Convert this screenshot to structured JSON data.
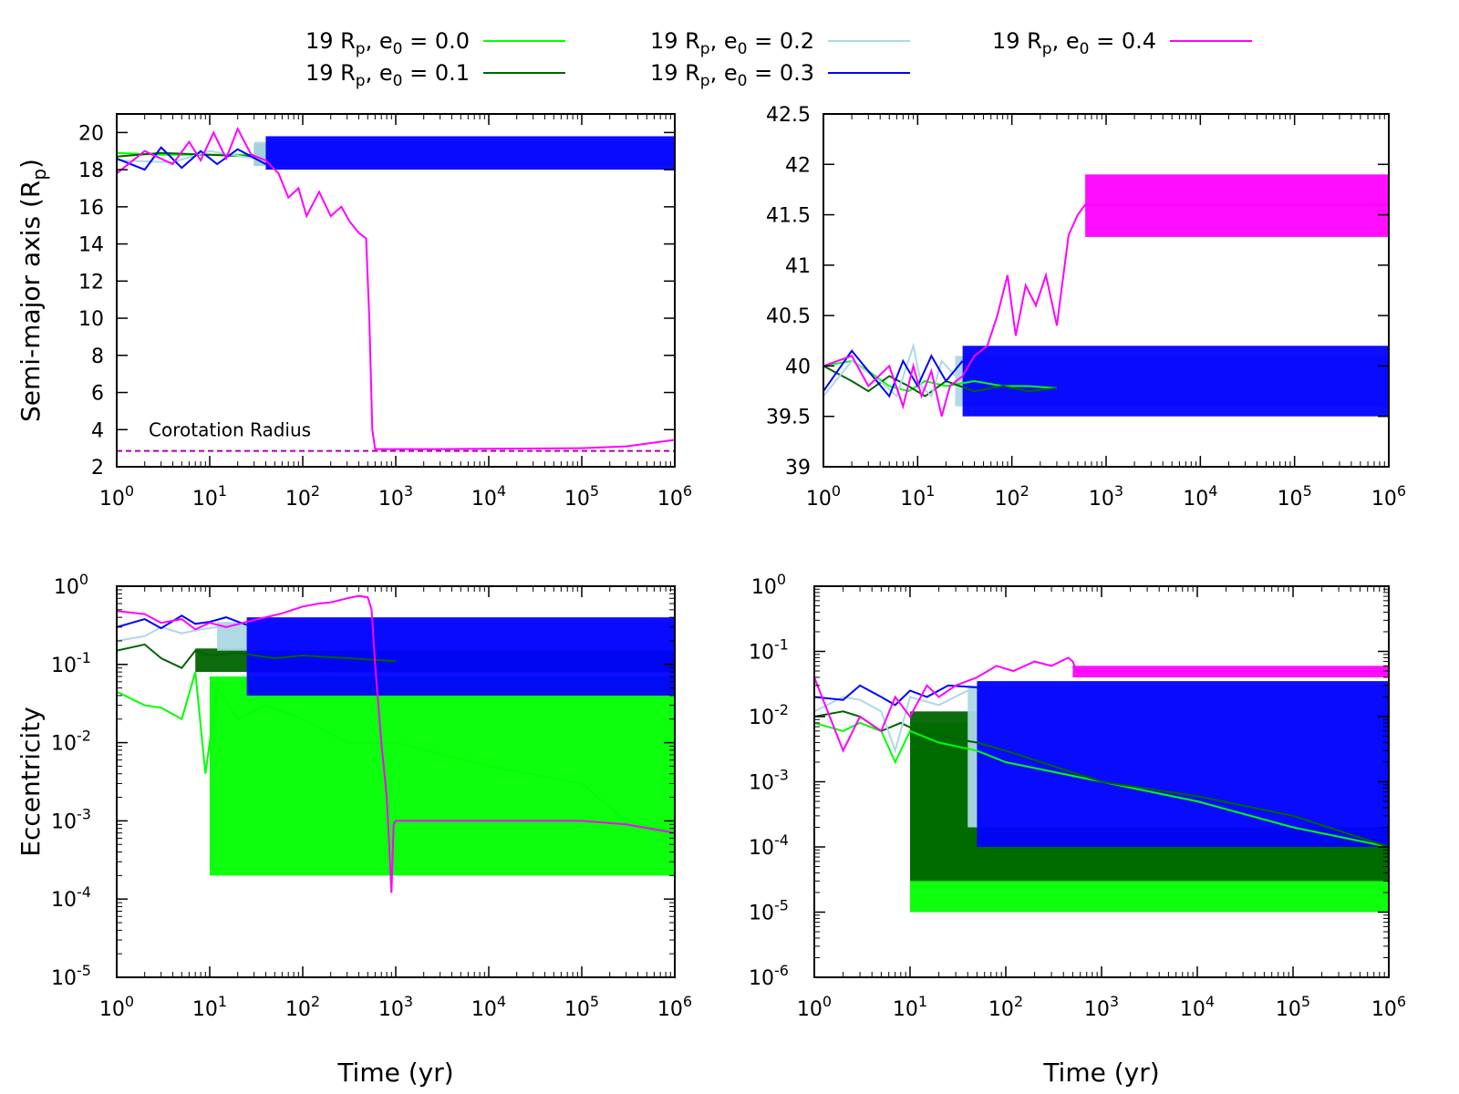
{
  "legend": [
    {
      "prefix": "19 R",
      "psub": "p",
      "mid": ", e",
      "esub": "0",
      "val": " = 0.0",
      "color": "#00ff00"
    },
    {
      "prefix": "19 R",
      "psub": "p",
      "mid": ", e",
      "esub": "0",
      "val": " = 0.1",
      "color": "#006400"
    },
    {
      "prefix": "19 R",
      "psub": "p",
      "mid": ", e",
      "esub": "0",
      "val": " = 0.2",
      "color": "#add8e6"
    },
    {
      "prefix": "19 R",
      "psub": "p",
      "mid": ", e",
      "esub": "0",
      "val": " = 0.3",
      "color": "#0000ff"
    },
    {
      "prefix": "19 R",
      "psub": "p",
      "mid": ", e",
      "esub": "0",
      "val": " = 0.4",
      "color": "#ff00ff"
    }
  ],
  "chart_data": [
    {
      "id": "top-left",
      "type": "line",
      "xscale": "log",
      "yscale": "linear",
      "xlim": [
        1,
        1000000
      ],
      "ylim": [
        2,
        21
      ],
      "yticks": [
        "2",
        "4",
        "6",
        "8",
        "10",
        "12",
        "14",
        "16",
        "18",
        "20"
      ],
      "ylabel": "Semi-major axis (R",
      "ylabel_sub": "p",
      "ylabel_end": ")",
      "xlabel": "",
      "annotation": {
        "text": "Corotation Radius",
        "y": 2.85,
        "color": "#b000b0"
      },
      "series": [
        {
          "name": "e0 = 0.0",
          "color": "#00ff00",
          "x": [
            1,
            3,
            10,
            30
          ],
          "y": [
            18.9,
            18.8,
            18.8,
            18.8
          ],
          "band": [
            30,
            1000000,
            18.2,
            19.4
          ]
        },
        {
          "name": "e0 = 0.1",
          "color": "#006400",
          "x": [
            1,
            3,
            10,
            30
          ],
          "y": [
            18.7,
            18.9,
            18.8,
            18.7
          ],
          "band": [
            30,
            1000000,
            18.2,
            19.4
          ]
        },
        {
          "name": "e0 = 0.2",
          "color": "#add8e6",
          "x": [
            1,
            4,
            10,
            30
          ],
          "y": [
            18.5,
            18.4,
            19.0,
            18.6
          ],
          "band": [
            30,
            1000000,
            18.2,
            19.5
          ]
        },
        {
          "name": "e0 = 0.3",
          "color": "#0000ff",
          "x": [
            1,
            2,
            3,
            5,
            8,
            12,
            20,
            40
          ],
          "y": [
            18.6,
            18.0,
            19.2,
            18.1,
            19.0,
            18.3,
            19.1,
            18.3
          ],
          "band": [
            40,
            1000000,
            18.0,
            19.8
          ]
        },
        {
          "name": "e0 = 0.4",
          "color": "#ff00ff",
          "x": [
            1,
            2,
            4,
            6,
            8,
            11,
            15,
            20,
            28,
            40,
            55,
            70,
            90,
            110,
            150,
            200,
            260,
            320,
            400,
            480,
            520,
            560,
            600,
            700,
            1000,
            3000,
            10000,
            100000,
            300000,
            1000000
          ],
          "y": [
            17.8,
            19.0,
            18.3,
            19.5,
            18.5,
            20.0,
            18.6,
            20.2,
            18.8,
            18.5,
            17.8,
            16.5,
            17.0,
            15.5,
            16.8,
            15.5,
            16.0,
            15.2,
            14.6,
            14.3,
            10.0,
            4.0,
            2.95,
            2.95,
            2.95,
            2.95,
            2.97,
            3.0,
            3.1,
            3.45
          ]
        }
      ]
    },
    {
      "id": "top-right",
      "type": "line",
      "xscale": "log",
      "yscale": "linear",
      "xlim": [
        1,
        1000000
      ],
      "ylim": [
        39,
        42.5
      ],
      "yticks": [
        "39",
        "39.5",
        "40",
        "40.5",
        "41",
        "41.5",
        "42",
        "42.5"
      ],
      "ylabel": "",
      "xlabel": "",
      "series": [
        {
          "name": "e0 = 0.0",
          "color": "#00ff00",
          "x": [
            1,
            2,
            3,
            5,
            8,
            12,
            20,
            40,
            80,
            150,
            300
          ],
          "y": [
            40.0,
            40.05,
            39.95,
            39.8,
            39.75,
            39.85,
            39.8,
            39.85,
            39.8,
            39.8,
            39.78
          ]
        },
        {
          "name": "e0 = 0.1",
          "color": "#006400",
          "x": [
            1,
            2,
            3,
            5,
            8,
            12,
            20,
            40,
            80,
            150,
            300
          ],
          "y": [
            40.0,
            39.85,
            39.75,
            39.9,
            39.8,
            39.7,
            39.85,
            39.75,
            39.8,
            39.75,
            39.78
          ]
        },
        {
          "name": "e0 = 0.2",
          "color": "#add8e6",
          "x": [
            1,
            2,
            4,
            6,
            9,
            11,
            14,
            18,
            25
          ],
          "y": [
            39.7,
            40.05,
            39.85,
            39.7,
            40.2,
            39.8,
            39.7,
            40.05,
            39.9
          ],
          "band": [
            25,
            1000000,
            39.6,
            40.1
          ]
        },
        {
          "name": "e0 = 0.3",
          "color": "#0000ff",
          "x": [
            1,
            2,
            3,
            5,
            7,
            10,
            14,
            20,
            30
          ],
          "y": [
            39.75,
            40.15,
            39.95,
            39.7,
            40.05,
            39.8,
            40.1,
            39.85,
            40.05
          ],
          "band": [
            30,
            1000000,
            39.5,
            40.2
          ]
        },
        {
          "name": "e0 = 0.4",
          "color": "#ff00ff",
          "x": [
            1,
            2,
            3,
            5,
            7,
            9,
            11,
            14,
            18,
            22,
            30,
            40,
            55,
            70,
            90,
            110,
            140,
            180,
            230,
            300,
            400,
            500,
            600,
            700,
            1000,
            10000,
            100000,
            1000000
          ],
          "y": [
            40.0,
            40.1,
            39.8,
            40.0,
            39.6,
            40.0,
            39.7,
            39.95,
            39.5,
            39.8,
            39.9,
            40.1,
            40.2,
            40.5,
            40.9,
            40.3,
            40.8,
            40.6,
            40.9,
            40.4,
            41.3,
            41.5,
            41.6,
            41.6,
            41.6,
            41.6,
            41.6,
            41.6
          ],
          "band": [
            600,
            1000000,
            41.28,
            41.9
          ]
        }
      ]
    },
    {
      "id": "bottom-left",
      "type": "line",
      "xscale": "log",
      "yscale": "log",
      "xlim": [
        1,
        1000000
      ],
      "ylim": [
        1e-05,
        1
      ],
      "ytick_exps": [
        "0",
        "-1",
        "-2",
        "-3",
        "-4",
        "-5"
      ],
      "ylabel": "Eccentricity",
      "xlabel": "Time (yr)",
      "series": [
        {
          "name": "e0 = 0.0",
          "color": "#00ff00",
          "x": [
            1,
            2,
            3,
            5,
            7,
            9,
            12,
            20,
            40,
            100,
            300,
            1000,
            10000,
            100000,
            300000,
            1000000
          ],
          "y": [
            0.045,
            0.03,
            0.028,
            0.02,
            0.08,
            0.004,
            0.05,
            0.02,
            0.03,
            0.02,
            0.01,
            0.01,
            0.005,
            0.003,
            0.001,
            0.0007
          ],
          "band": [
            10,
            1000000,
            0.0002,
            0.07
          ]
        },
        {
          "name": "e0 = 0.1",
          "color": "#006400",
          "x": [
            1,
            2,
            3,
            5,
            7,
            10,
            20,
            50,
            100,
            300,
            1000
          ],
          "y": [
            0.15,
            0.18,
            0.12,
            0.09,
            0.15,
            0.13,
            0.14,
            0.12,
            0.13,
            0.12,
            0.11
          ],
          "band": [
            7,
            1000000,
            0.08,
            0.16
          ]
        },
        {
          "name": "e0 = 0.2",
          "color": "#add8e6",
          "x": [
            1,
            2,
            3,
            5,
            8,
            12,
            20
          ],
          "y": [
            0.2,
            0.23,
            0.3,
            0.25,
            0.28,
            0.3,
            0.26
          ],
          "band": [
            12,
            1000000,
            0.15,
            0.35
          ]
        },
        {
          "name": "e0 = 0.3",
          "color": "#0000ff",
          "x": [
            1,
            2,
            3,
            5,
            7,
            10,
            15,
            25
          ],
          "y": [
            0.3,
            0.38,
            0.29,
            0.42,
            0.33,
            0.35,
            0.4,
            0.32
          ],
          "band": [
            25,
            1000000,
            0.04,
            0.4
          ]
        },
        {
          "name": "e0 = 0.4",
          "color": "#ff00ff",
          "x": [
            1,
            2,
            3,
            5,
            7,
            10,
            15,
            25,
            40,
            60,
            100,
            150,
            200,
            300,
            400,
            500,
            550,
            600,
            700,
            800,
            850,
            900,
            950,
            1000,
            1200,
            2000,
            10000,
            100000,
            300000,
            1000000
          ],
          "y": [
            0.48,
            0.44,
            0.34,
            0.38,
            0.28,
            0.34,
            0.3,
            0.35,
            0.4,
            0.45,
            0.55,
            0.6,
            0.62,
            0.7,
            0.75,
            0.72,
            0.5,
            0.1,
            0.01,
            0.002,
            0.0005,
            0.00012,
            0.0009,
            0.001,
            0.001,
            0.001,
            0.001,
            0.001,
            0.0009,
            0.0007
          ]
        }
      ]
    },
    {
      "id": "bottom-right",
      "type": "line",
      "xscale": "log",
      "yscale": "log",
      "xlim": [
        1,
        1000000
      ],
      "ylim": [
        1e-06,
        1
      ],
      "ytick_exps": [
        "0",
        "-1",
        "-2",
        "-3",
        "-4",
        "-5",
        "-6"
      ],
      "ylabel": "",
      "xlabel": "Time (yr)",
      "series": [
        {
          "name": "e0 = 0.0",
          "color": "#00ff00",
          "x": [
            1,
            2,
            3,
            5,
            7,
            10,
            20,
            50,
            100,
            1000,
            10000,
            100000,
            1000000
          ],
          "y": [
            0.008,
            0.006,
            0.008,
            0.006,
            0.002,
            0.006,
            0.004,
            0.003,
            0.002,
            0.001,
            0.0005,
            0.0002,
            0.0001
          ],
          "band": [
            10,
            1000000,
            1e-05,
            0.008
          ]
        },
        {
          "name": "e0 = 0.1",
          "color": "#006400",
          "x": [
            1,
            2,
            3,
            5,
            8,
            12,
            20,
            50,
            100,
            1000,
            10000,
            100000,
            1000000
          ],
          "y": [
            0.01,
            0.012,
            0.01,
            0.006,
            0.008,
            0.006,
            0.005,
            0.004,
            0.003,
            0.001,
            0.0006,
            0.0003,
            0.0001
          ],
          "band": [
            10,
            1000000,
            3e-05,
            0.012
          ]
        },
        {
          "name": "e0 = 0.2",
          "color": "#add8e6",
          "x": [
            1,
            2,
            3,
            5,
            7,
            10,
            20,
            40
          ],
          "y": [
            0.012,
            0.02,
            0.018,
            0.012,
            0.003,
            0.02,
            0.015,
            0.025
          ],
          "band": [
            40,
            1000000,
            0.0002,
            0.03
          ]
        },
        {
          "name": "e0 = 0.3",
          "color": "#0000ff",
          "x": [
            1,
            2,
            3,
            5,
            7,
            10,
            15,
            25,
            50
          ],
          "y": [
            0.02,
            0.018,
            0.03,
            0.02,
            0.015,
            0.025,
            0.02,
            0.03,
            0.028
          ],
          "band": [
            50,
            1000000,
            0.0001,
            0.035
          ]
        },
        {
          "name": "e0 = 0.4",
          "color": "#ff00ff",
          "x": [
            1,
            2,
            3,
            5,
            7,
            10,
            15,
            20,
            30,
            50,
            80,
            120,
            200,
            300,
            450,
            500,
            550,
            1000,
            10000,
            100000,
            1000000
          ],
          "y": [
            0.04,
            0.003,
            0.01,
            0.006,
            0.02,
            0.01,
            0.03,
            0.02,
            0.03,
            0.04,
            0.06,
            0.05,
            0.07,
            0.06,
            0.08,
            0.07,
            0.05,
            0.05,
            0.05,
            0.05,
            0.05
          ],
          "band": [
            500,
            1000000,
            0.04,
            0.06
          ]
        }
      ]
    }
  ]
}
